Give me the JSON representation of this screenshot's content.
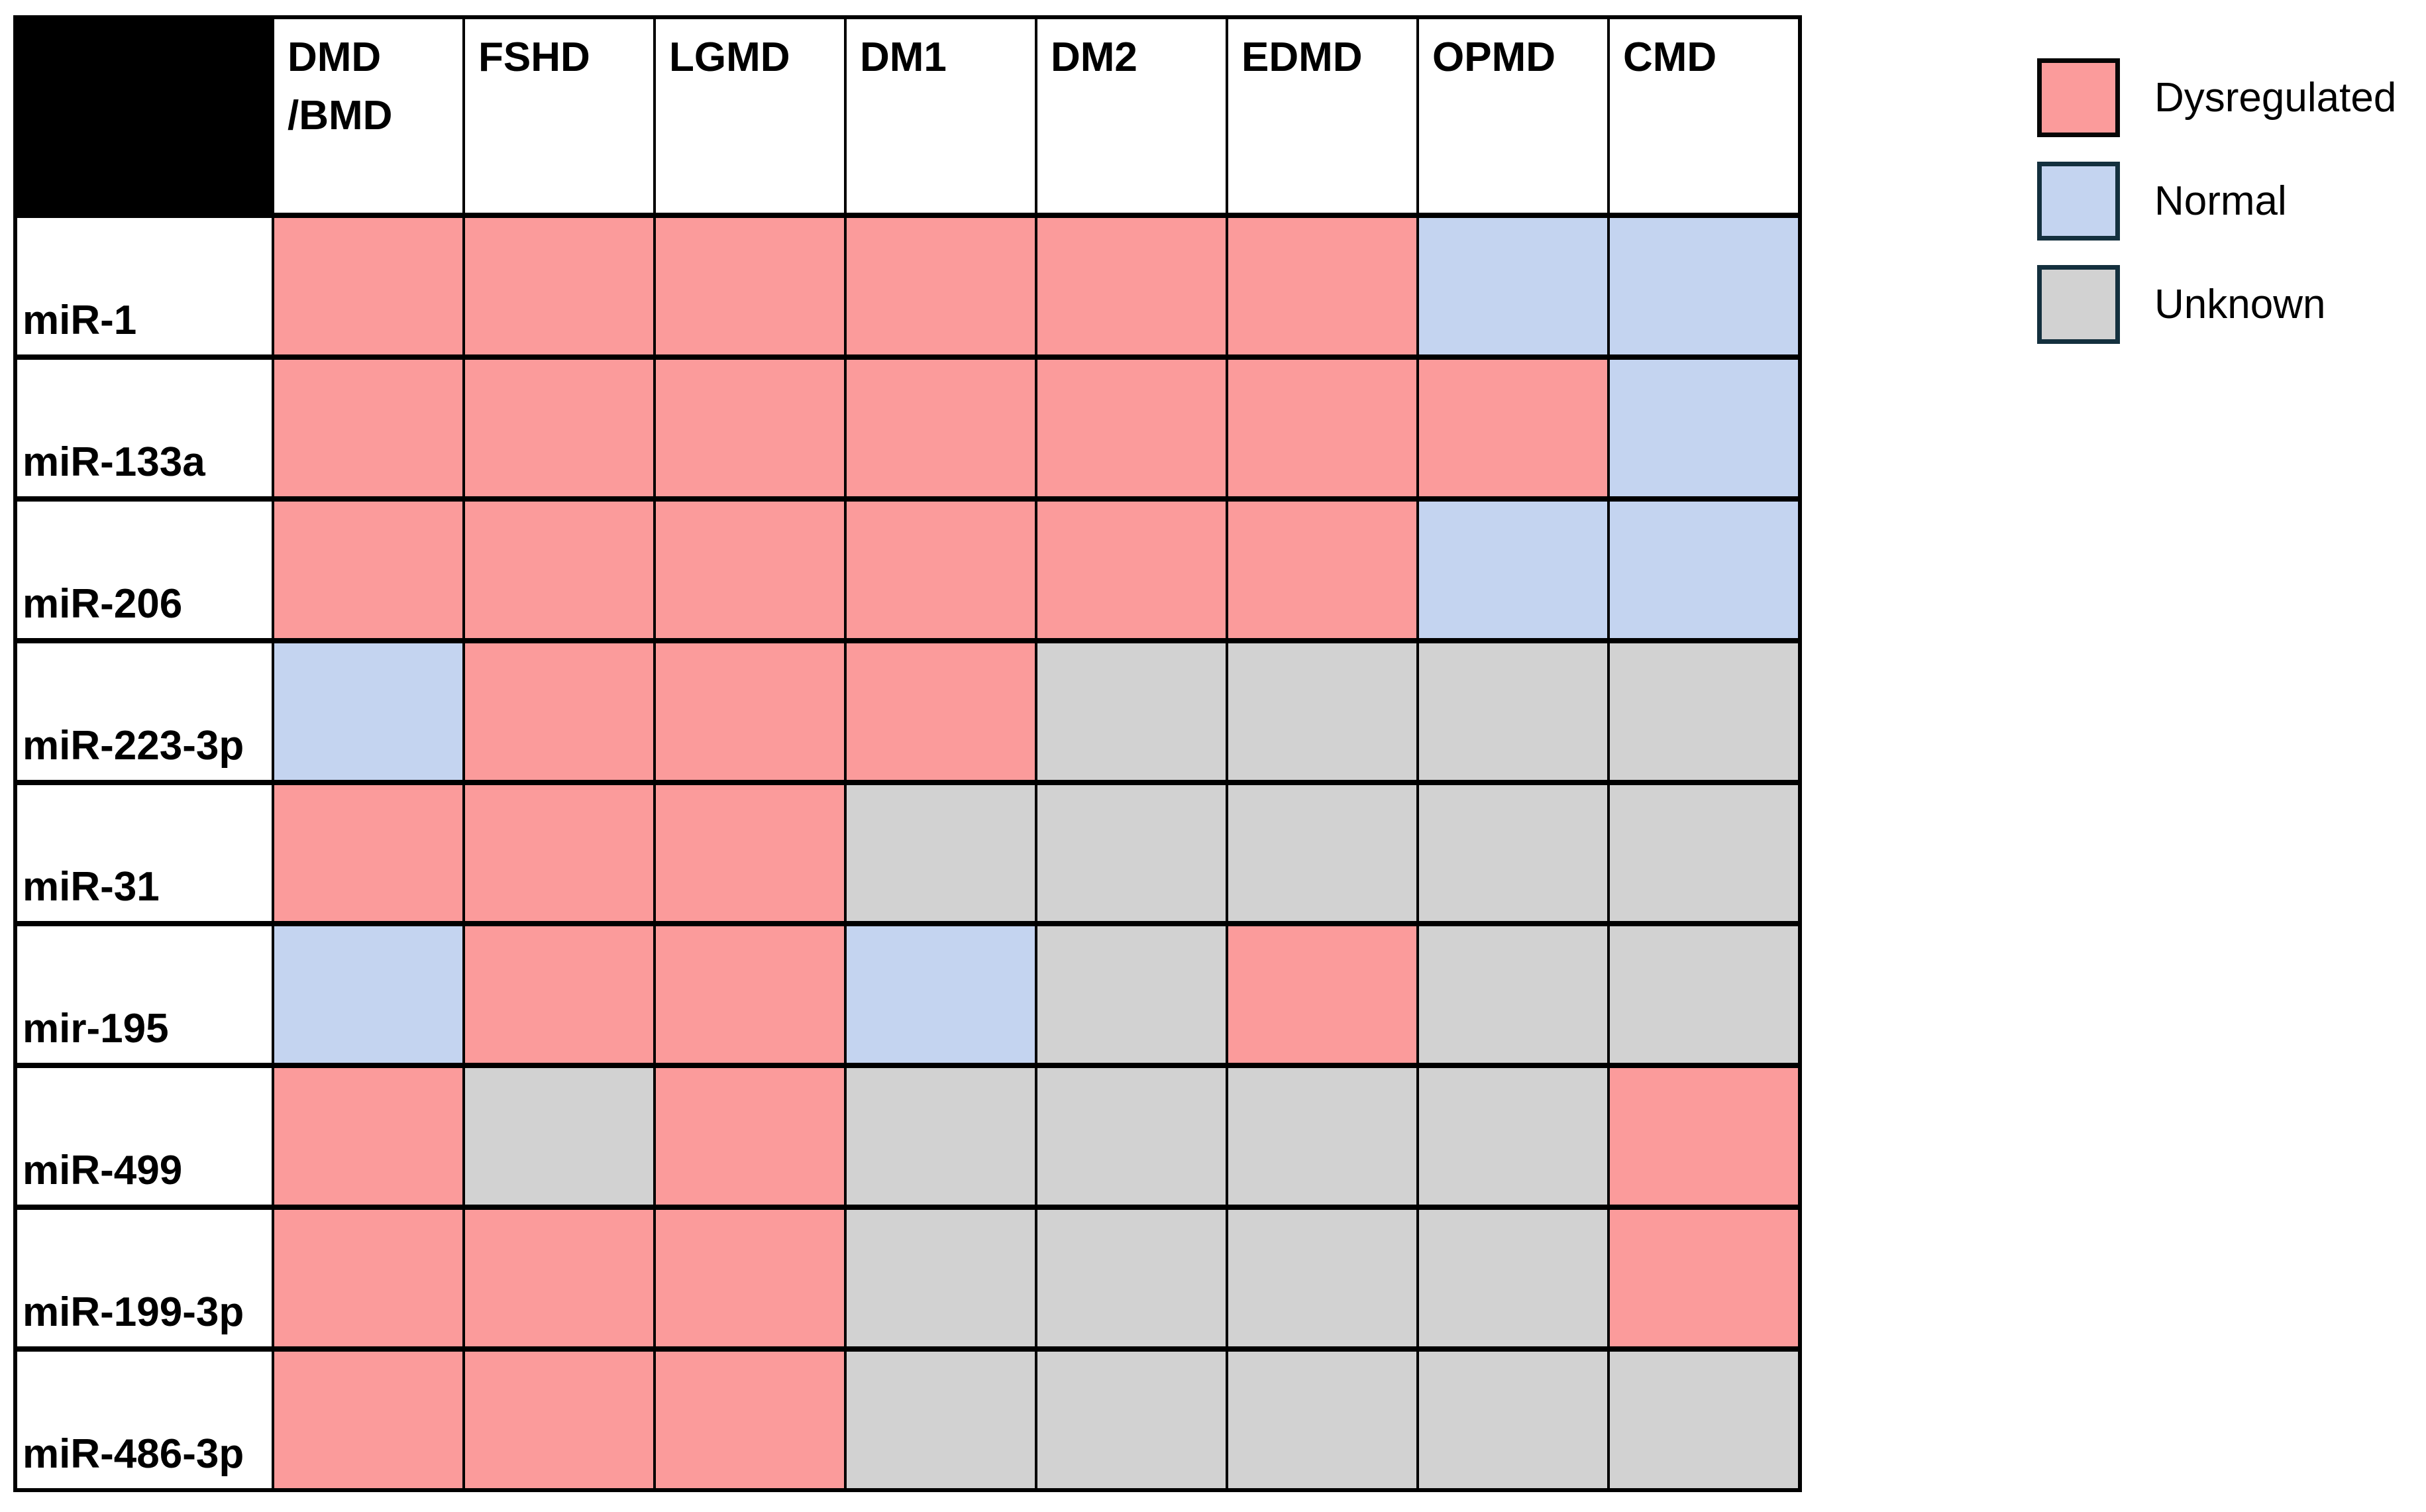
{
  "chart_data": {
    "type": "heatmap",
    "title": "",
    "columns": [
      "DMD\n/BMD",
      "FSHD",
      "LGMD",
      "DM1",
      "DM2",
      "EDMD",
      "OPMD",
      "CMD"
    ],
    "rows": [
      "miR-1",
      "miR-133a",
      "miR-206",
      "miR-223-3p",
      "miR-31",
      "mir-195",
      "miR-499",
      "miR-199-3p",
      "miR-486-3p"
    ],
    "cells": [
      [
        "dysregulated",
        "dysregulated",
        "dysregulated",
        "dysregulated",
        "dysregulated",
        "dysregulated",
        "normal",
        "normal"
      ],
      [
        "dysregulated",
        "dysregulated",
        "dysregulated",
        "dysregulated",
        "dysregulated",
        "dysregulated",
        "dysregulated",
        "normal"
      ],
      [
        "dysregulated",
        "dysregulated",
        "dysregulated",
        "dysregulated",
        "dysregulated",
        "dysregulated",
        "normal",
        "normal"
      ],
      [
        "normal",
        "dysregulated",
        "dysregulated",
        "dysregulated",
        "unknown",
        "unknown",
        "unknown",
        "unknown"
      ],
      [
        "dysregulated",
        "dysregulated",
        "dysregulated",
        "unknown",
        "unknown",
        "unknown",
        "unknown",
        "unknown"
      ],
      [
        "normal",
        "dysregulated",
        "dysregulated",
        "normal",
        "unknown",
        "dysregulated",
        "unknown",
        "unknown"
      ],
      [
        "dysregulated",
        "unknown",
        "dysregulated",
        "unknown",
        "unknown",
        "unknown",
        "unknown",
        "dysregulated"
      ],
      [
        "dysregulated",
        "dysregulated",
        "dysregulated",
        "unknown",
        "unknown",
        "unknown",
        "unknown",
        "dysregulated"
      ],
      [
        "dysregulated",
        "dysregulated",
        "dysregulated",
        "unknown",
        "unknown",
        "unknown",
        "unknown",
        "unknown"
      ]
    ],
    "status_colors": {
      "dysregulated": "#FB9B9B",
      "normal": "#C4D4F0",
      "unknown": "#D2D2D2"
    },
    "grid_color": "#000000",
    "legend_position": "top-right",
    "legend": [
      {
        "label": "Dysregulated",
        "fill": "#FB9B9B",
        "border": "#060606"
      },
      {
        "label": "Normal",
        "fill": "#C4D4F0",
        "border": "#14303E"
      },
      {
        "label": "Unknown",
        "fill": "#D2D2D2",
        "border": "#14303E"
      }
    ]
  }
}
